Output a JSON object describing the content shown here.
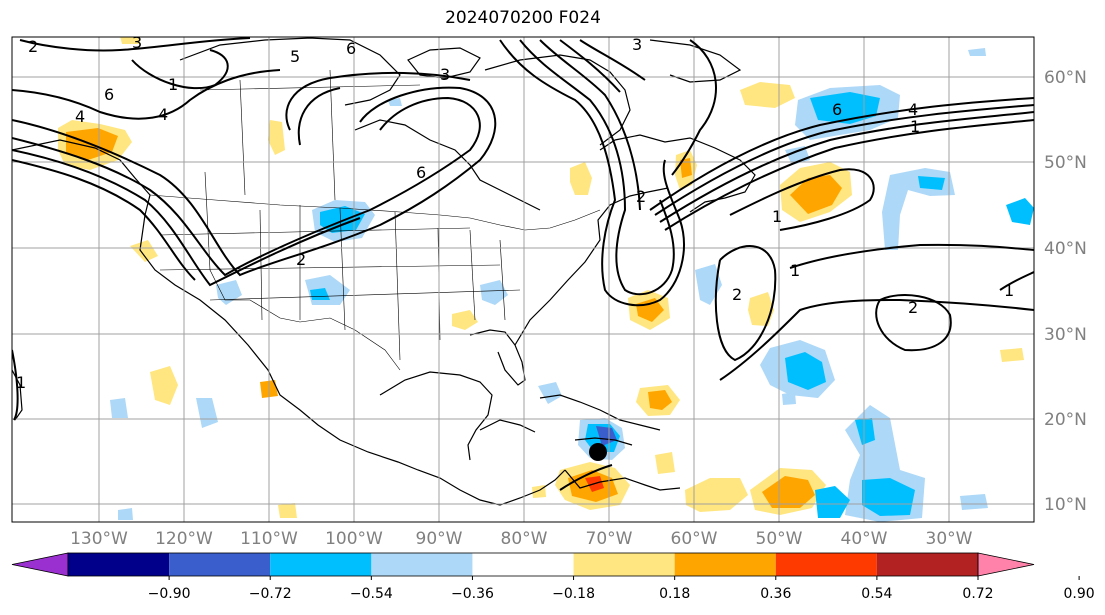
{
  "title": "2024070200 F024",
  "lon_labels": [
    "130°W",
    "120°W",
    "110°W",
    "100°W",
    "90°W",
    "80°W",
    "70°W",
    "60°W",
    "50°W",
    "40°W",
    "30°W"
  ],
  "lat_labels": [
    "60°N",
    "50°N",
    "40°N",
    "30°N",
    "20°N",
    "10°N"
  ],
  "colorbar": {
    "colors": [
      "#9b30d0",
      "#00008b",
      "#3a5fcd",
      "#00bfff",
      "#add8f7",
      "#ffffff",
      "#ffe680",
      "#ffa500",
      "#ff3a00",
      "#b22222",
      "#ff82ab"
    ],
    "labels": [
      "−0.90",
      "−0.72",
      "−0.54",
      "−0.36",
      "−0.18",
      "0.18",
      "0.36",
      "0.54",
      "0.72",
      "0.90"
    ]
  },
  "contour_labels": [
    "2",
    "3",
    "5",
    "6",
    "1",
    "4",
    "3",
    "6",
    "4",
    "2",
    "6",
    "4",
    "1",
    "6",
    "1",
    "2",
    "2",
    "1",
    "2",
    "1",
    "3",
    "1"
  ],
  "colors": {
    "land_line": "#000000",
    "grid": "#a0a0a0",
    "contour": "#000000"
  }
}
